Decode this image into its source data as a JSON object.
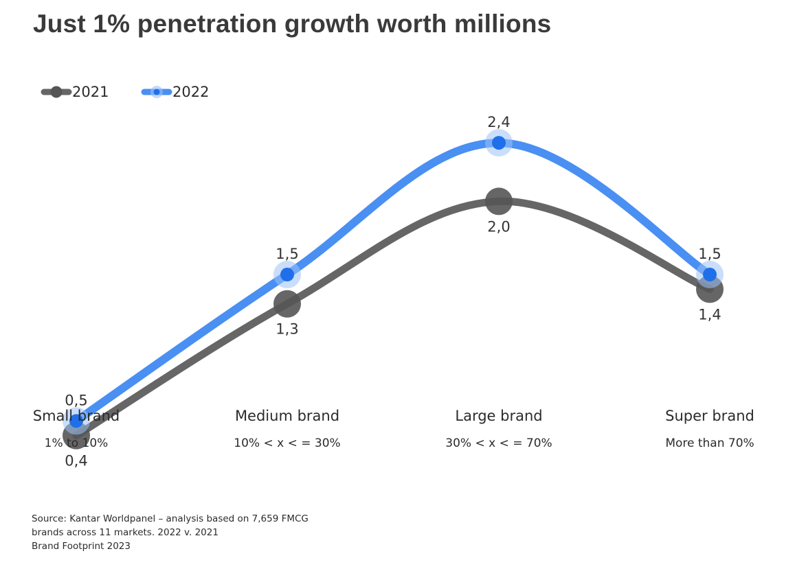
{
  "title": "Just 1% penetration growth worth millions",
  "chart_data": {
    "type": "line",
    "categories": [
      "Small brand",
      "Medium brand",
      "Large brand",
      "Super brand"
    ],
    "category_subtitles": [
      "1% to 10%",
      "10% < x < = 30%",
      "30% < x < = 70%",
      "More than 70%"
    ],
    "series": [
      {
        "name": "2021",
        "values": [
          0.4,
          1.3,
          2.0,
          1.4
        ],
        "labels": [
          "0,4",
          "1,3",
          "2,0",
          "1,4"
        ],
        "color": "#666666"
      },
      {
        "name": "2022",
        "values": [
          0.5,
          1.5,
          2.4,
          1.5
        ],
        "labels": [
          "0,5",
          "1,5",
          "2,4",
          "1,5"
        ],
        "color": "#4a8ff2",
        "marker_color": "#1f6fea"
      }
    ],
    "legend_position": "top-left",
    "grid": false
  },
  "source": [
    "Source: Kantar Worldpanel – analysis based on 7,659 FMCG",
    "brands across 11 markets. 2022 v. 2021",
    "Brand Footprint 2023"
  ]
}
